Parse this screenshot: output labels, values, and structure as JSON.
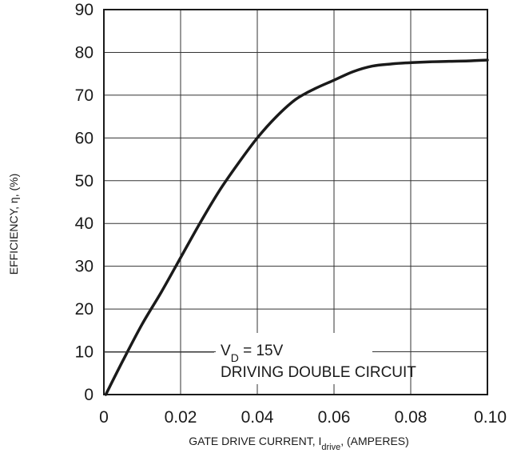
{
  "chart_data": {
    "type": "line",
    "title": "",
    "xlabel": {
      "prefix": "GATE DRIVE CURRENT, I",
      "subscript": "drive",
      "suffix": ", (AMPERES)"
    },
    "ylabel": "EFFICIENCY, η, (%)",
    "xlim": [
      0,
      0.1
    ],
    "ylim": [
      0,
      90
    ],
    "x_ticks": [
      "0",
      "0.02",
      "0.04",
      "0.06",
      "0.08",
      "0.10"
    ],
    "x_tick_values": [
      0,
      0.02,
      0.04,
      0.06,
      0.08,
      0.1
    ],
    "y_ticks": [
      "0",
      "10",
      "20",
      "30",
      "40",
      "50",
      "60",
      "70",
      "80",
      "90"
    ],
    "y_tick_values": [
      0,
      10,
      20,
      30,
      40,
      50,
      60,
      70,
      80,
      90
    ],
    "grid": true,
    "series": [
      {
        "x": [
          0.0005,
          0.005,
          0.01,
          0.015,
          0.02,
          0.025,
          0.03,
          0.035,
          0.04,
          0.045,
          0.05,
          0.055,
          0.06,
          0.065,
          0.07,
          0.075,
          0.08,
          0.085,
          0.09,
          0.095,
          0.1
        ],
        "y": [
          0,
          8,
          16.5,
          24,
          32,
          40,
          47.5,
          54,
          60,
          65,
          69,
          71.5,
          73.5,
          75.5,
          76.8,
          77.3,
          77.6,
          77.8,
          77.9,
          78.0,
          78.2
        ]
      }
    ],
    "annotation": {
      "line1_prefix": "V",
      "line1_subscript": "D",
      "line1_suffix": " = 15V",
      "line2": "DRIVING DOUBLE CIRCUIT"
    }
  }
}
